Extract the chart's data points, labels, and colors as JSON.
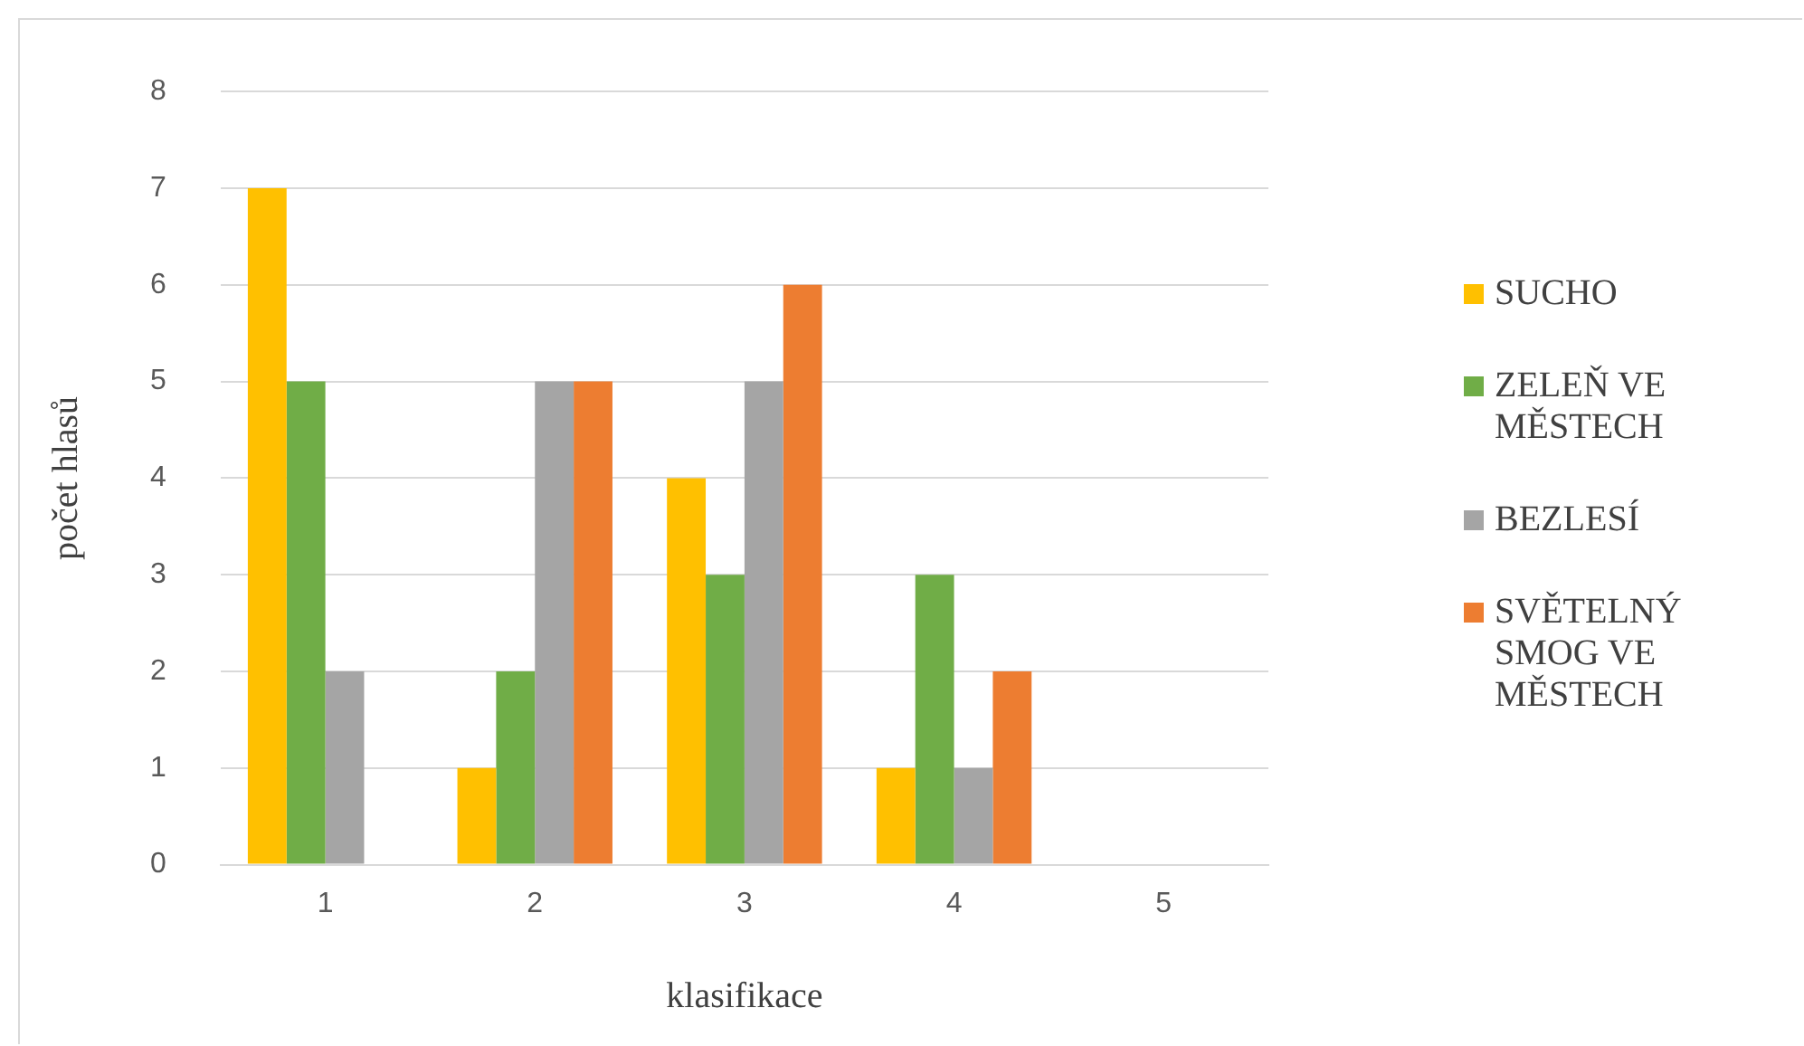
{
  "chart_data": {
    "type": "bar",
    "xlabel": "klasifikace",
    "ylabel": "počet hlasů",
    "categories": [
      "1",
      "2",
      "3",
      "4",
      "5"
    ],
    "series": [
      {
        "name": "SUCHO",
        "color": "#ffc000",
        "values": [
          7,
          1,
          4,
          1,
          0
        ]
      },
      {
        "name": "ZELEŇ VE MĚSTECH",
        "color": "#70ad47",
        "values": [
          5,
          2,
          3,
          3,
          0
        ]
      },
      {
        "name": "BEZLESÍ",
        "color": "#a5a5a5",
        "values": [
          2,
          5,
          5,
          1,
          0
        ]
      },
      {
        "name": "SVĚTELNÝ SMOG VE MĚSTECH",
        "color": "#ed7d31",
        "values": [
          0,
          5,
          6,
          2,
          0
        ]
      }
    ],
    "ylim": [
      0,
      8
    ],
    "yticks": [
      0,
      1,
      2,
      3,
      4,
      5,
      6,
      7,
      8
    ],
    "grid": "y",
    "legend": "right"
  }
}
